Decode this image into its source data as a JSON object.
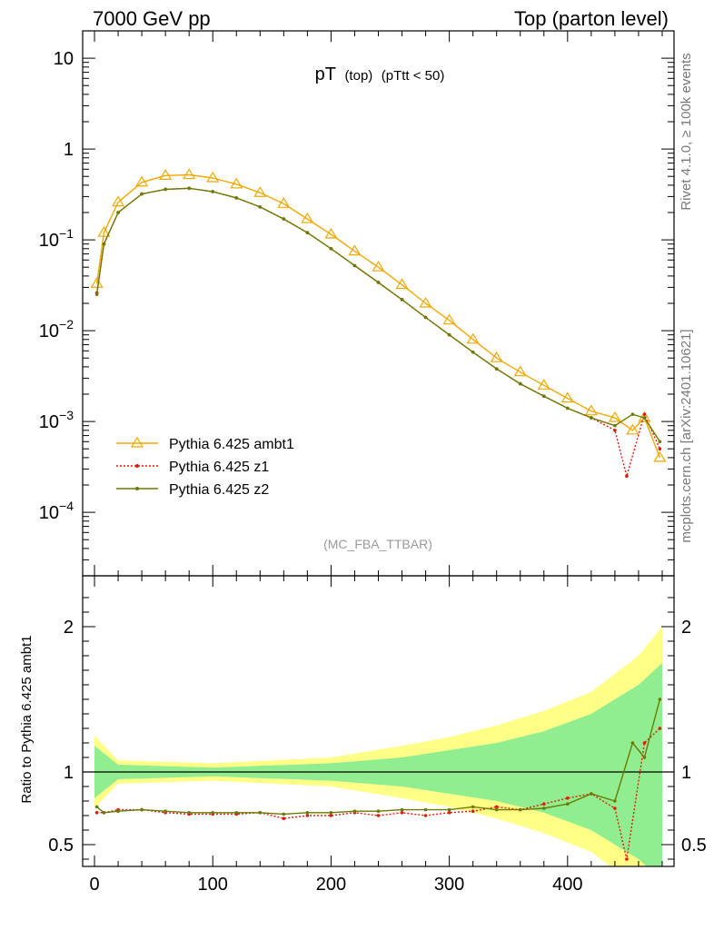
{
  "header": {
    "left": "7000 GeV pp",
    "right": "Top (parton level)"
  },
  "side_labels": {
    "rivet": "Rivet 4.1.0, ≥ 100k events",
    "mcplots": "mcplots.cern.ch [arXiv:2401.10621]"
  },
  "colors": {
    "ambt1": "#f2a800",
    "z1": "#e8170c",
    "z2": "#6b7a00",
    "band_yellow": "#ffff88",
    "band_green": "#90ee90"
  },
  "chart_data": [
    {
      "type": "line",
      "title_main": "pT",
      "title_sub": "(top)",
      "title_cut": "(pTtt < 50)",
      "analysis_label": "(MC_FBA_TTBAR)",
      "yscale": "log",
      "xlim": [
        -10,
        490
      ],
      "ylim": [
        2e-05,
        20
      ],
      "ytick_labels": [
        {
          "value": 10,
          "base": "10",
          "exp": ""
        },
        {
          "value": 1,
          "base": "1",
          "exp": ""
        },
        {
          "value": 0.1,
          "base": "10",
          "exp": "−1"
        },
        {
          "value": 0.01,
          "base": "10",
          "exp": "−2"
        },
        {
          "value": 0.001,
          "base": "10",
          "exp": "−3"
        },
        {
          "value": 0.0001,
          "base": "10",
          "exp": "−4"
        }
      ],
      "legend_position": "bottom-left",
      "series": [
        {
          "name": "Pythia 6.425 ambt1",
          "key": "ambt1",
          "marker": "open-triangle",
          "linestyle": "solid",
          "points": [
            [
              2,
              0.033
            ],
            [
              8,
              0.12
            ],
            [
              20,
              0.26
            ],
            [
              40,
              0.43
            ],
            [
              60,
              0.51
            ],
            [
              80,
              0.52
            ],
            [
              100,
              0.48
            ],
            [
              120,
              0.41
            ],
            [
              140,
              0.33
            ],
            [
              160,
              0.25
            ],
            [
              180,
              0.17
            ],
            [
              200,
              0.115
            ],
            [
              220,
              0.075
            ],
            [
              240,
              0.05
            ],
            [
              260,
              0.032
            ],
            [
              280,
              0.02
            ],
            [
              300,
              0.013
            ],
            [
              320,
              0.008
            ],
            [
              340,
              0.005
            ],
            [
              360,
              0.0035
            ],
            [
              380,
              0.0025
            ],
            [
              400,
              0.0018
            ],
            [
              420,
              0.0013
            ],
            [
              440,
              0.0011
            ],
            [
              455,
              0.0008
            ],
            [
              465,
              0.0011
            ],
            [
              478,
              0.0004
            ]
          ]
        },
        {
          "name": "Pythia 6.425 z1",
          "key": "z1",
          "marker": "dot",
          "linestyle": "dotted",
          "points": [
            [
              2,
              0.026
            ],
            [
              8,
              0.09
            ],
            [
              20,
              0.2
            ],
            [
              40,
              0.32
            ],
            [
              60,
              0.36
            ],
            [
              80,
              0.37
            ],
            [
              100,
              0.34
            ],
            [
              120,
              0.29
            ],
            [
              140,
              0.23
            ],
            [
              160,
              0.17
            ],
            [
              180,
              0.12
            ],
            [
              200,
              0.08
            ],
            [
              220,
              0.052
            ],
            [
              240,
              0.034
            ],
            [
              260,
              0.022
            ],
            [
              280,
              0.014
            ],
            [
              300,
              0.009
            ],
            [
              320,
              0.0058
            ],
            [
              340,
              0.0038
            ],
            [
              360,
              0.0026
            ],
            [
              380,
              0.0019
            ],
            [
              400,
              0.0014
            ],
            [
              420,
              0.0011
            ],
            [
              440,
              0.0008
            ],
            [
              450,
              0.00025
            ],
            [
              465,
              0.0012
            ],
            [
              478,
              0.0005
            ]
          ]
        },
        {
          "name": "Pythia 6.425 z2",
          "key": "z2",
          "marker": "dot",
          "linestyle": "solid",
          "points": [
            [
              2,
              0.025
            ],
            [
              8,
              0.09
            ],
            [
              20,
              0.2
            ],
            [
              40,
              0.32
            ],
            [
              60,
              0.36
            ],
            [
              80,
              0.37
            ],
            [
              100,
              0.34
            ],
            [
              120,
              0.29
            ],
            [
              140,
              0.23
            ],
            [
              160,
              0.17
            ],
            [
              180,
              0.12
            ],
            [
              200,
              0.08
            ],
            [
              220,
              0.052
            ],
            [
              240,
              0.034
            ],
            [
              260,
              0.022
            ],
            [
              280,
              0.014
            ],
            [
              300,
              0.009
            ],
            [
              320,
              0.0058
            ],
            [
              340,
              0.0038
            ],
            [
              360,
              0.0026
            ],
            [
              380,
              0.0019
            ],
            [
              400,
              0.0014
            ],
            [
              420,
              0.0011
            ],
            [
              440,
              0.0009
            ],
            [
              455,
              0.0012
            ],
            [
              465,
              0.0011
            ],
            [
              478,
              0.0006
            ]
          ]
        }
      ]
    },
    {
      "type": "line",
      "ylabel": "Ratio to Pythia 6.425 ambt1",
      "xlim": [
        -10,
        490
      ],
      "ylim": [
        0.35,
        2.35
      ],
      "yticks": [
        0.5,
        1,
        2
      ],
      "ytick_labels": [
        "0.5",
        "1",
        "2"
      ],
      "xticks": [
        0,
        100,
        200,
        300,
        400
      ],
      "xtick_labels": [
        "0",
        "100",
        "200",
        "300",
        "400"
      ],
      "reference_line": 1,
      "bands": {
        "yellow_halfwidth": [
          [
            0,
            0.25
          ],
          [
            20,
            0.08
          ],
          [
            100,
            0.06
          ],
          [
            200,
            0.1
          ],
          [
            260,
            0.18
          ],
          [
            300,
            0.24
          ],
          [
            340,
            0.32
          ],
          [
            380,
            0.42
          ],
          [
            420,
            0.55
          ],
          [
            460,
            0.8
          ],
          [
            480,
            1.0
          ]
        ],
        "green_halfwidth": [
          [
            0,
            0.18
          ],
          [
            20,
            0.05
          ],
          [
            100,
            0.03
          ],
          [
            200,
            0.06
          ],
          [
            260,
            0.1
          ],
          [
            300,
            0.15
          ],
          [
            340,
            0.2
          ],
          [
            380,
            0.28
          ],
          [
            420,
            0.4
          ],
          [
            460,
            0.6
          ],
          [
            480,
            0.75
          ]
        ]
      },
      "series": [
        {
          "name": "Pythia 6.425 z1",
          "key": "z1",
          "linestyle": "dotted",
          "points": [
            [
              2,
              0.72
            ],
            [
              8,
              0.72
            ],
            [
              20,
              0.74
            ],
            [
              40,
              0.74
            ],
            [
              60,
              0.72
            ],
            [
              80,
              0.71
            ],
            [
              100,
              0.71
            ],
            [
              120,
              0.71
            ],
            [
              140,
              0.72
            ],
            [
              160,
              0.68
            ],
            [
              180,
              0.7
            ],
            [
              200,
              0.7
            ],
            [
              220,
              0.72
            ],
            [
              240,
              0.7
            ],
            [
              260,
              0.72
            ],
            [
              280,
              0.7
            ],
            [
              300,
              0.72
            ],
            [
              320,
              0.73
            ],
            [
              340,
              0.76
            ],
            [
              360,
              0.74
            ],
            [
              380,
              0.78
            ],
            [
              400,
              0.82
            ],
            [
              420,
              0.85
            ],
            [
              440,
              0.75
            ],
            [
              450,
              0.4
            ],
            [
              465,
              1.2
            ],
            [
              478,
              1.3
            ]
          ]
        },
        {
          "name": "Pythia 6.425 z2",
          "key": "z2",
          "linestyle": "solid",
          "points": [
            [
              2,
              0.76
            ],
            [
              8,
              0.72
            ],
            [
              20,
              0.73
            ],
            [
              40,
              0.74
            ],
            [
              60,
              0.73
            ],
            [
              80,
              0.72
            ],
            [
              100,
              0.72
            ],
            [
              120,
              0.72
            ],
            [
              140,
              0.72
            ],
            [
              160,
              0.71
            ],
            [
              180,
              0.72
            ],
            [
              200,
              0.72
            ],
            [
              220,
              0.73
            ],
            [
              240,
              0.73
            ],
            [
              260,
              0.74
            ],
            [
              280,
              0.74
            ],
            [
              300,
              0.74
            ],
            [
              320,
              0.76
            ],
            [
              340,
              0.74
            ],
            [
              360,
              0.74
            ],
            [
              380,
              0.75
            ],
            [
              400,
              0.78
            ],
            [
              420,
              0.85
            ],
            [
              440,
              0.8
            ],
            [
              455,
              1.2
            ],
            [
              465,
              1.1
            ],
            [
              478,
              1.5
            ]
          ]
        }
      ]
    }
  ]
}
